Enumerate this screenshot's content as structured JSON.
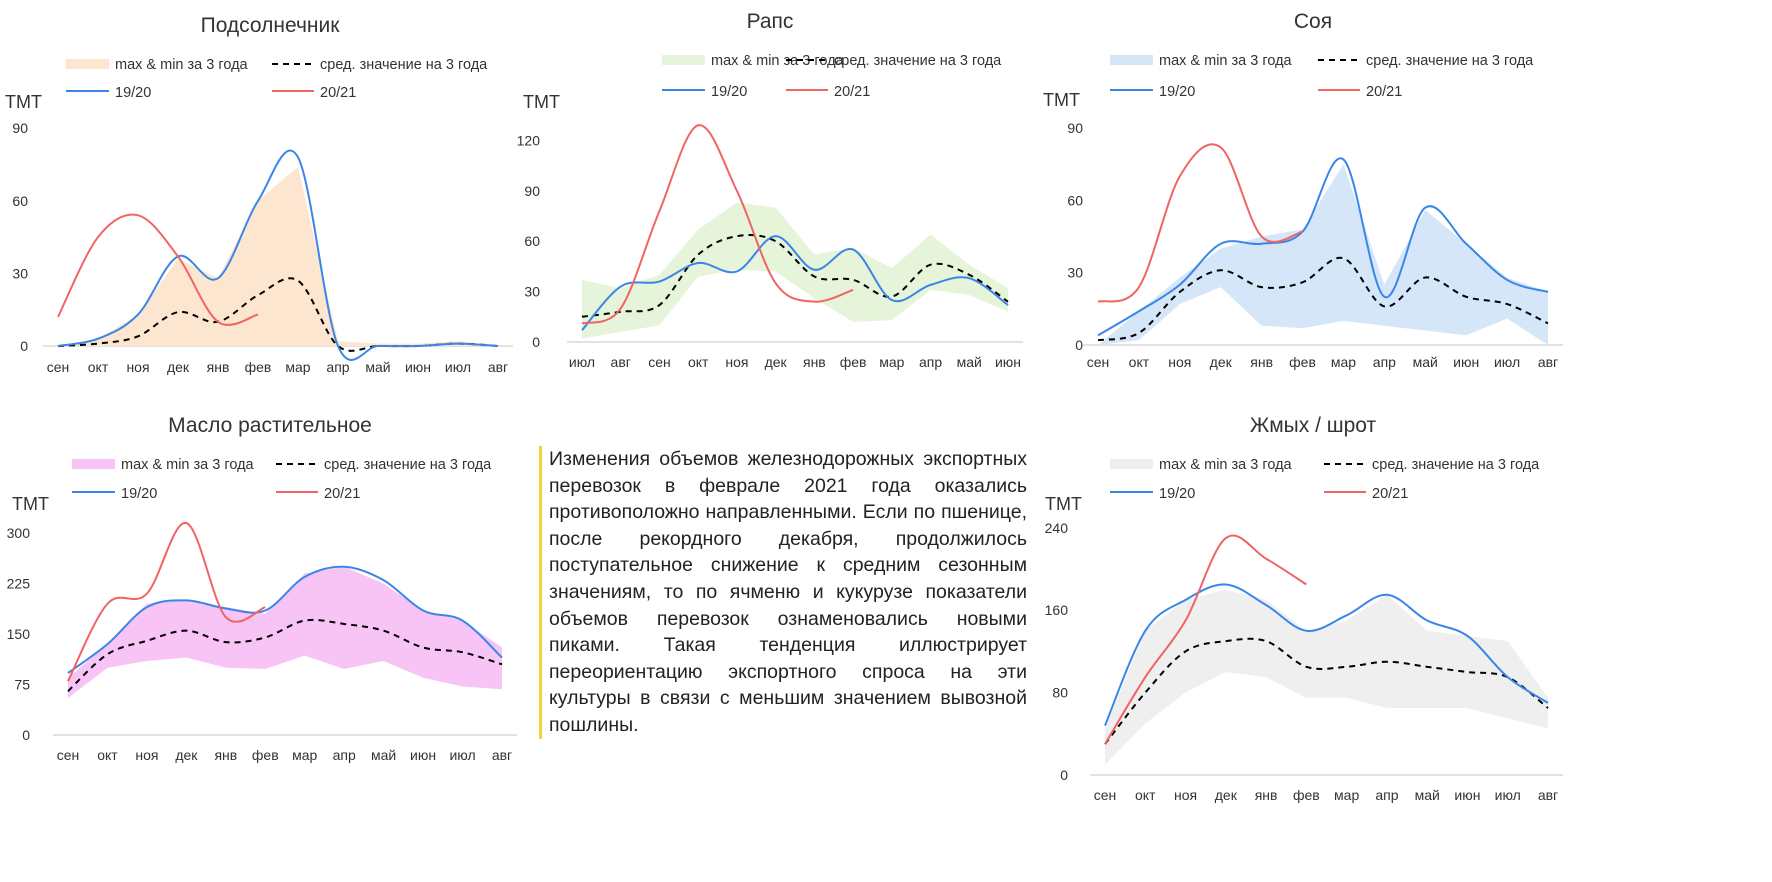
{
  "legend": {
    "band": "max & min за 3 года",
    "avg": "сред. значение на 3 года",
    "s1": "19/20",
    "s2": "20/21"
  },
  "colors": {
    "s1": "#3a86e8",
    "s2": "#f06464",
    "avg": "#000000"
  },
  "note": "Изменения объемов железнодорожных экспортных перевозок в феврале 2021 года оказались противоположно направленными. Если по пшенице, после рекордного декабря, продолжилось поступательное снижение к средним сезонным значениям, то по ячменю и кукурузе показатели объемов перевозок ознаменовались новыми пиками. Такая тенденция иллюстрирует переориентацию экспортного спроса на эти культуры в связи с меньшим значением вывозной пошлины.",
  "chart_data": [
    {
      "type": "line",
      "title": "Подсолнечник",
      "ylabel": "ТМТ",
      "band_color": "#fde6cf",
      "ylim": [
        0,
        90
      ],
      "yticks": [
        0,
        30,
        60,
        90
      ],
      "categories": [
        "сен",
        "окт",
        "ноя",
        "дек",
        "янв",
        "фев",
        "мар",
        "апр",
        "май",
        "июн",
        "июл",
        "авг"
      ],
      "band_max": [
        0,
        3,
        13,
        36,
        28,
        60,
        74,
        2,
        1,
        1,
        2,
        0
      ],
      "band_min": [
        0,
        0,
        0,
        0,
        0,
        0,
        0,
        0,
        0,
        0,
        0,
        0
      ],
      "avg": [
        0,
        1,
        4,
        14,
        10,
        21,
        27,
        0,
        0,
        0,
        1,
        0
      ],
      "s1": [
        0,
        3,
        13,
        37,
        28,
        60,
        78,
        0,
        0,
        0,
        1,
        0
      ],
      "s2": [
        12,
        45,
        54,
        37,
        10,
        13
      ]
    },
    {
      "type": "line",
      "title": "Рапс",
      "ylabel": "ТМТ",
      "band_color": "#e6f4da",
      "ylim": [
        0,
        130
      ],
      "yticks": [
        0,
        30,
        60,
        90,
        120
      ],
      "categories": [
        "июл",
        "авг",
        "сен",
        "окт",
        "ноя",
        "дек",
        "янв",
        "фев",
        "мар",
        "апр",
        "май",
        "июн"
      ],
      "band_max": [
        37,
        32,
        40,
        67,
        83,
        80,
        52,
        56,
        44,
        64,
        46,
        32
      ],
      "band_min": [
        2,
        6,
        10,
        39,
        43,
        42,
        26,
        12,
        13,
        31,
        28,
        18
      ],
      "avg": [
        15,
        18,
        22,
        52,
        63,
        60,
        39,
        37,
        27,
        46,
        40,
        24
      ],
      "s1": [
        7,
        33,
        36,
        47,
        42,
        63,
        43,
        55,
        25,
        34,
        38,
        22
      ],
      "s2": [
        11,
        20,
        78,
        129,
        90,
        35,
        24,
        31
      ]
    },
    {
      "type": "line",
      "title": "Соя",
      "ylabel": "ТМТ",
      "band_color": "#d5e6f8",
      "ylim": [
        0,
        90
      ],
      "yticks": [
        0,
        30,
        60,
        90
      ],
      "categories": [
        "сен",
        "окт",
        "ноя",
        "дек",
        "янв",
        "фев",
        "мар",
        "апр",
        "май",
        "июн",
        "июл",
        "авг"
      ],
      "band_max": [
        0,
        14,
        28,
        40,
        45,
        48,
        75,
        25,
        56,
        42,
        28,
        22
      ],
      "band_min": [
        0,
        2,
        17,
        24,
        8,
        7,
        10,
        8,
        6,
        4,
        11,
        0
      ],
      "avg": [
        2,
        5,
        22,
        31,
        24,
        26,
        36,
        16,
        28,
        20,
        17,
        9
      ],
      "s1": [
        4,
        14,
        25,
        42,
        42,
        47,
        77,
        20,
        57,
        42,
        27,
        22
      ],
      "s2": [
        18,
        24,
        70,
        82,
        45,
        47
      ]
    },
    {
      "type": "line",
      "title": "Масло растительное",
      "ylabel": "ТМТ",
      "band_color": "#f8c4f6",
      "ylim": [
        0,
        300
      ],
      "yticks": [
        0,
        75,
        150,
        225,
        300
      ],
      "categories": [
        "сен",
        "окт",
        "ноя",
        "дек",
        "янв",
        "фев",
        "мар",
        "апр",
        "май",
        "июн",
        "июл",
        "авг"
      ],
      "band_max": [
        85,
        135,
        195,
        200,
        190,
        180,
        240,
        250,
        225,
        185,
        170,
        130
      ],
      "band_min": [
        55,
        100,
        110,
        115,
        100,
        98,
        118,
        98,
        110,
        85,
        72,
        68
      ],
      "avg": [
        65,
        120,
        140,
        155,
        138,
        145,
        170,
        165,
        155,
        130,
        123,
        105
      ],
      "s1": [
        92,
        135,
        190,
        200,
        188,
        185,
        235,
        250,
        230,
        185,
        170,
        115
      ],
      "s2": [
        80,
        195,
        210,
        315,
        175,
        190
      ]
    },
    {
      "type": "line",
      "title": "Жмых / шрот",
      "ylabel": "ТМТ",
      "band_color": "#efefef",
      "ylim": [
        0,
        240
      ],
      "yticks": [
        0,
        80,
        160,
        240
      ],
      "categories": [
        "сен",
        "окт",
        "ноя",
        "дек",
        "янв",
        "фев",
        "мар",
        "апр",
        "май",
        "июн",
        "июл",
        "авг"
      ],
      "band_max": [
        45,
        140,
        170,
        180,
        170,
        140,
        150,
        175,
        140,
        135,
        130,
        75
      ],
      "band_min": [
        10,
        50,
        80,
        100,
        95,
        75,
        75,
        65,
        65,
        65,
        55,
        45
      ],
      "avg": [
        30,
        80,
        120,
        130,
        130,
        105,
        105,
        110,
        105,
        100,
        95,
        65
      ],
      "s1": [
        48,
        140,
        170,
        185,
        165,
        140,
        155,
        175,
        150,
        135,
        95,
        70
      ],
      "s2": [
        30,
        95,
        150,
        230,
        210,
        185
      ]
    }
  ]
}
